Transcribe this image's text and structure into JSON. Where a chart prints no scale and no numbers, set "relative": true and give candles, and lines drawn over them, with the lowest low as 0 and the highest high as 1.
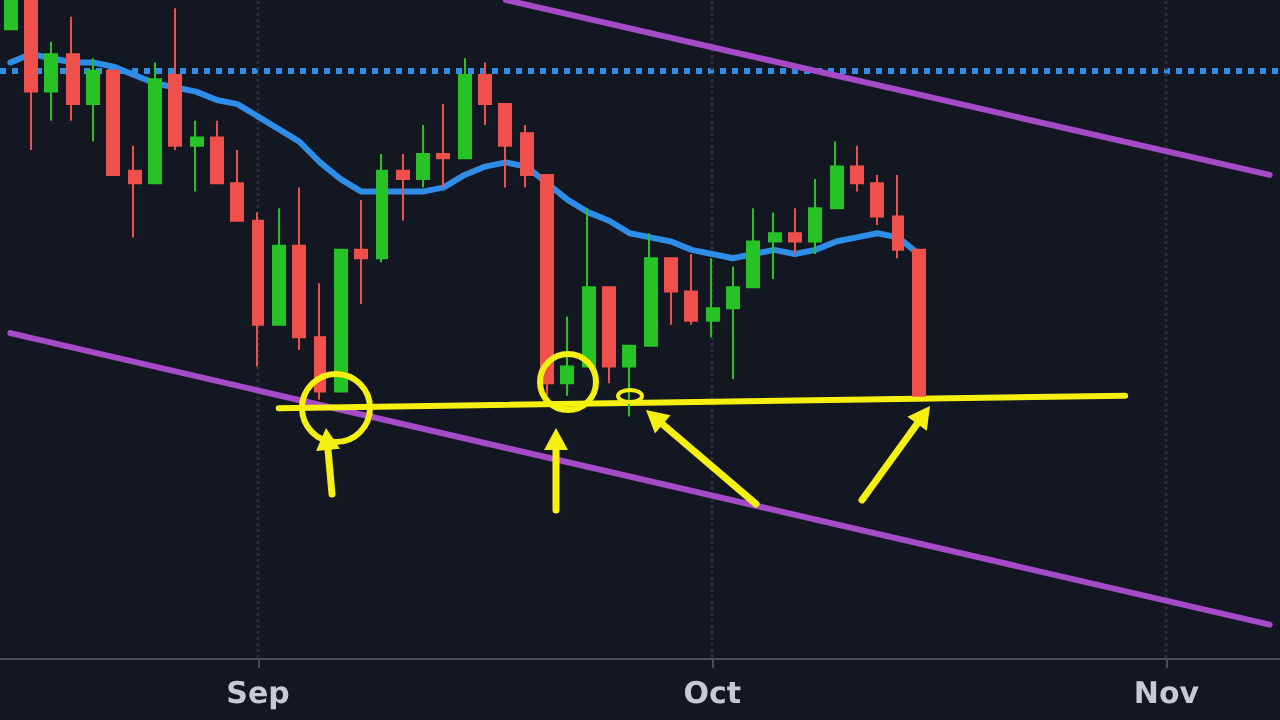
{
  "chart_data": {
    "type": "candlestick",
    "relative": true,
    "grid": "x",
    "marker": "none",
    "line_style": "solid",
    "categories": [
      null,
      null,
      null,
      null,
      null,
      null,
      null,
      null,
      null,
      null,
      null,
      null,
      "Sep",
      null,
      null,
      null,
      null,
      null,
      null,
      null,
      null,
      null,
      null,
      null,
      null,
      null,
      null,
      null,
      null,
      null,
      null,
      null,
      null,
      null,
      "Oct",
      null,
      null,
      null,
      null,
      null,
      null,
      null,
      null,
      null,
      null,
      null,
      null,
      null,
      null,
      null,
      null,
      null,
      null,
      null,
      null,
      null,
      "Nov",
      null,
      null,
      null,
      null,
      null
    ],
    "ohlc": [
      [
        0.93,
        1.0,
        0.93,
        1.0
      ],
      [
        1.0,
        1.0,
        0.64,
        0.78
      ],
      [
        0.78,
        0.9,
        0.71,
        0.87
      ],
      [
        0.87,
        0.96,
        0.71,
        0.75
      ],
      [
        0.75,
        0.86,
        0.66,
        0.83
      ],
      [
        0.83,
        0.83,
        0.58,
        0.58
      ],
      [
        0.59,
        0.65,
        0.43,
        0.56
      ],
      [
        0.56,
        0.85,
        0.56,
        0.81
      ],
      [
        0.82,
        0.98,
        0.64,
        0.65
      ],
      [
        0.65,
        0.71,
        0.54,
        0.67
      ],
      [
        0.67,
        0.71,
        0.56,
        0.56
      ],
      [
        0.56,
        0.64,
        0.47,
        0.47
      ],
      [
        0.47,
        0.49,
        0.12,
        0.22
      ],
      [
        0.22,
        0.5,
        0.22,
        0.41
      ],
      [
        0.41,
        0.55,
        0.16,
        0.19
      ],
      [
        0.19,
        0.32,
        0.04,
        0.06
      ],
      [
        0.06,
        0.4,
        0.06,
        0.4
      ],
      [
        0.4,
        0.52,
        0.27,
        0.38
      ],
      [
        0.38,
        0.63,
        0.37,
        0.59
      ],
      [
        0.59,
        0.63,
        0.47,
        0.57
      ],
      [
        0.57,
        0.7,
        0.55,
        0.63
      ],
      [
        0.63,
        0.75,
        0.55,
        0.62
      ],
      [
        0.62,
        0.86,
        0.62,
        0.82
      ],
      [
        0.82,
        0.85,
        0.7,
        0.75
      ],
      [
        0.75,
        0.75,
        0.55,
        0.65
      ],
      [
        0.68,
        0.7,
        0.55,
        0.58
      ],
      [
        0.58,
        0.58,
        0.05,
        0.08
      ],
      [
        0.08,
        0.24,
        0.05,
        0.12
      ],
      [
        0.12,
        0.5,
        0.12,
        0.31
      ],
      [
        0.31,
        0.31,
        0.08,
        0.12
      ],
      [
        0.12,
        0.17,
        0.0,
        0.17
      ],
      [
        0.17,
        0.44,
        0.17,
        0.38
      ],
      [
        0.38,
        0.38,
        0.22,
        0.3
      ],
      [
        0.3,
        0.39,
        0.22,
        0.23
      ],
      [
        0.23,
        0.38,
        0.19,
        0.26
      ],
      [
        0.26,
        0.36,
        0.09,
        0.31
      ],
      [
        0.31,
        0.5,
        0.31,
        0.42
      ],
      [
        0.42,
        0.49,
        0.33,
        0.44
      ],
      [
        0.44,
        0.5,
        0.39,
        0.42
      ],
      [
        0.42,
        0.57,
        0.39,
        0.5
      ],
      [
        0.5,
        0.66,
        0.5,
        0.6
      ],
      [
        0.6,
        0.65,
        0.54,
        0.56
      ],
      [
        0.56,
        0.58,
        0.46,
        0.48
      ],
      [
        0.48,
        0.58,
        0.38,
        0.4
      ],
      [
        0.4,
        0.4,
        0.05,
        0.05
      ],
      null,
      null,
      null,
      null,
      null,
      null,
      null,
      null,
      null,
      null,
      null,
      null,
      null,
      null,
      null,
      null,
      null
    ],
    "colors": [
      "#26c226",
      "#f0504b",
      "#26c226",
      "#f0504b",
      "#26c226",
      "#f0504b",
      "#f0504b",
      "#26c226",
      "#f0504b",
      "#26c226",
      "#f0504b",
      "#f0504b",
      "#f0504b",
      "#26c226",
      "#f0504b",
      "#f0504b",
      "#26c226",
      "#f0504b",
      "#26c226",
      "#f0504b",
      "#26c226",
      "#f0504b",
      "#26c226",
      "#f0504b",
      "#f0504b",
      "#f0504b",
      "#f0504b",
      "#26c226",
      "#26c226",
      "#f0504b",
      "#26c226",
      "#26c226",
      "#f0504b",
      "#f0504b",
      "#26c226",
      "#26c226",
      "#26c226",
      "#26c226",
      "#f0504b",
      "#26c226",
      "#26c226",
      "#f0504b",
      "#f0504b",
      "#f0504b",
      "#f0504b",
      null,
      null,
      null,
      null,
      null,
      null,
      null,
      null,
      null,
      null,
      null,
      null,
      null,
      null,
      null,
      null,
      null
    ],
    "series": [
      {
        "type": "line",
        "color": "#2e8de6",
        "values": [
          0.85,
          0.87,
          0.86,
          0.85,
          0.85,
          0.84,
          0.82,
          0.8,
          0.79,
          0.78,
          0.76,
          0.75,
          0.72,
          0.69,
          0.66,
          0.61,
          0.57,
          0.54,
          0.54,
          0.54,
          0.54,
          0.55,
          0.58,
          0.6,
          0.61,
          0.6,
          0.56,
          0.52,
          0.49,
          0.47,
          0.44,
          0.43,
          0.42,
          0.4,
          0.39,
          0.38,
          0.39,
          0.4,
          0.39,
          0.4,
          0.42,
          0.43,
          0.44,
          0.43,
          0.39,
          null,
          null,
          null,
          null,
          null,
          null,
          null,
          null,
          null,
          null,
          null,
          null,
          null,
          null,
          null,
          null,
          null
        ]
      },
      {
        "type": "line",
        "color": "#a64bc8",
        "values": [
          null,
          null,
          null,
          null,
          null,
          null,
          null,
          null,
          null,
          null,
          null,
          null,
          null,
          null,
          null,
          null,
          null,
          null,
          null,
          null,
          null,
          null,
          null,
          null,
          1.0,
          null,
          null,
          null,
          null,
          null,
          null,
          null,
          null,
          null,
          null,
          null,
          null,
          null,
          null,
          null,
          null,
          null,
          null,
          null,
          null,
          null,
          null,
          null,
          null,
          null,
          null,
          null,
          null,
          null,
          null,
          null,
          null,
          null,
          null,
          null,
          null,
          0.58
        ]
      },
      {
        "type": "line",
        "color": "#a64bc8",
        "values": [
          0.2,
          null,
          null,
          null,
          null,
          null,
          null,
          null,
          null,
          null,
          null,
          null,
          null,
          null,
          null,
          null,
          null,
          null,
          null,
          null,
          null,
          null,
          null,
          null,
          null,
          null,
          null,
          null,
          null,
          null,
          null,
          null,
          null,
          null,
          null,
          null,
          null,
          null,
          null,
          null,
          null,
          null,
          null,
          null,
          null,
          null,
          null,
          null,
          null,
          null,
          null,
          null,
          null,
          null,
          null,
          null,
          null,
          null,
          null,
          null,
          null,
          -0.5
        ]
      },
      {
        "type": "line",
        "color": "#f5f010",
        "values": [
          null,
          null,
          null,
          null,
          null,
          null,
          null,
          null,
          null,
          null,
          null,
          null,
          null,
          0.02,
          null,
          null,
          null,
          null,
          null,
          null,
          null,
          null,
          null,
          null,
          null,
          null,
          null,
          null,
          null,
          null,
          null,
          null,
          null,
          null,
          null,
          null,
          null,
          null,
          null,
          null,
          null,
          null,
          null,
          null,
          null,
          null,
          null,
          null,
          null,
          null,
          null,
          null,
          null,
          null,
          0.05,
          null,
          null,
          null,
          null,
          null,
          null,
          null
        ]
      }
    ],
    "ref_lines": [
      {
        "axis": "y",
        "value": 0.83,
        "color": "#2e8de6",
        "line_style": "dotted"
      }
    ]
  }
}
